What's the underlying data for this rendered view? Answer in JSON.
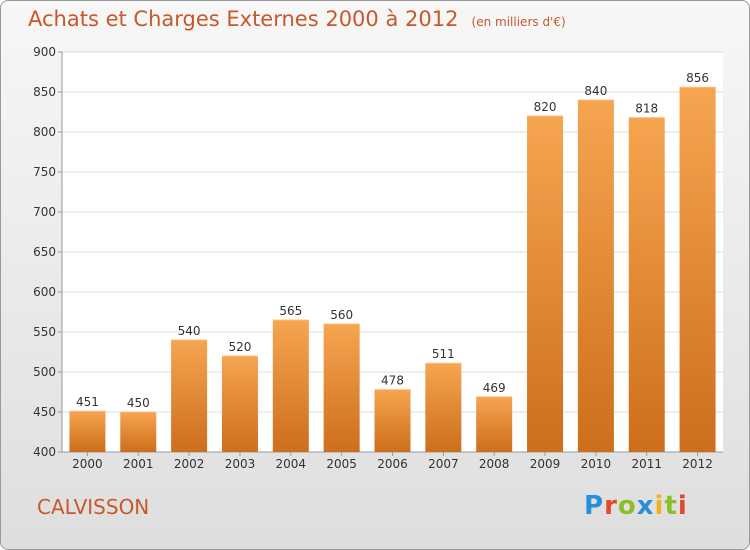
{
  "chart_data": {
    "type": "bar",
    "title": "Achats et Charges Externes 2000 à 2012",
    "subtitle": "(en milliers d'€)",
    "categories": [
      "2000",
      "2001",
      "2002",
      "2003",
      "2004",
      "2005",
      "2006",
      "2007",
      "2008",
      "2009",
      "2010",
      "2011",
      "2012"
    ],
    "values": [
      451,
      450,
      540,
      520,
      565,
      560,
      478,
      511,
      469,
      820,
      840,
      818,
      856
    ],
    "ylim": [
      400,
      900
    ],
    "yticks": [
      400,
      450,
      500,
      550,
      600,
      650,
      700,
      750,
      800,
      850,
      900
    ],
    "grid": true,
    "bar_color_top": "#f6a550",
    "bar_color_bottom": "#cd6e1c"
  },
  "location": "CALVISSON",
  "brand": {
    "letters": [
      "P",
      "r",
      "o",
      "x",
      "i",
      "t",
      "i"
    ],
    "colors": [
      "#2a8fd6",
      "#e8452c",
      "#8cbf26",
      "#2a8fd6",
      "#f2b01e",
      "#8cbf26",
      "#e8452c"
    ]
  }
}
